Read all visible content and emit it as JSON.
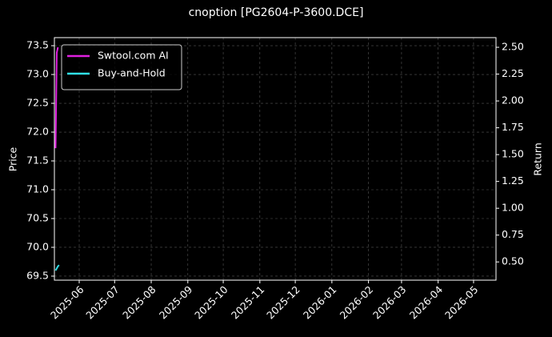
{
  "chart_data": {
    "type": "line",
    "title": "cnoption [PG2604-P-3600.DCE]",
    "y_label": "Price",
    "y2_label": "Return",
    "series": [
      {
        "name": "Swtool.com AI",
        "color": "#e020e0",
        "axis": "y2",
        "x": [
          "2025-05-12",
          "2025-05-13",
          "2025-05-14"
        ],
        "values": [
          1.56,
          2.45,
          2.5
        ]
      },
      {
        "name": "Buy-and-Hold",
        "color": "#30e0e8",
        "axis": "y2",
        "x": [
          "2025-05-12",
          "2025-05-13",
          "2025-05-14",
          "2025-05-15"
        ],
        "values": [
          0.42,
          0.44,
          0.46,
          0.47
        ]
      }
    ],
    "xlim": [
      "2025-05-11",
      "2026-05-20"
    ],
    "xticks": [
      "2025-06",
      "2025-07",
      "2025-08",
      "2025-09",
      "2025-10",
      "2025-11",
      "2025-12",
      "2026-01",
      "2026-02",
      "2026-03",
      "2026-04",
      "2026-05"
    ],
    "ylim": [
      69.43,
      73.64
    ],
    "yticks": [
      69.5,
      {
        "value": 70,
        "label": "70.0"
      },
      70.5,
      {
        "value": 71,
        "label": "71.0"
      },
      71.5,
      {
        "value": 72,
        "label": "72.0"
      },
      72.5,
      {
        "value": 73,
        "label": "73.0"
      },
      73.5
    ],
    "y2lim": [
      0.33,
      2.59
    ],
    "y2ticks": [
      {
        "value": 0.5,
        "label": "0.50"
      },
      0.75,
      {
        "value": 1,
        "label": "1.00"
      },
      1.25,
      {
        "value": 1.5,
        "label": "1.50"
      },
      1.75,
      {
        "value": 2,
        "label": "2.00"
      },
      2.25,
      {
        "value": 2.5,
        "label": "2.50"
      }
    ],
    "grid": true,
    "legend": "upper-left"
  }
}
